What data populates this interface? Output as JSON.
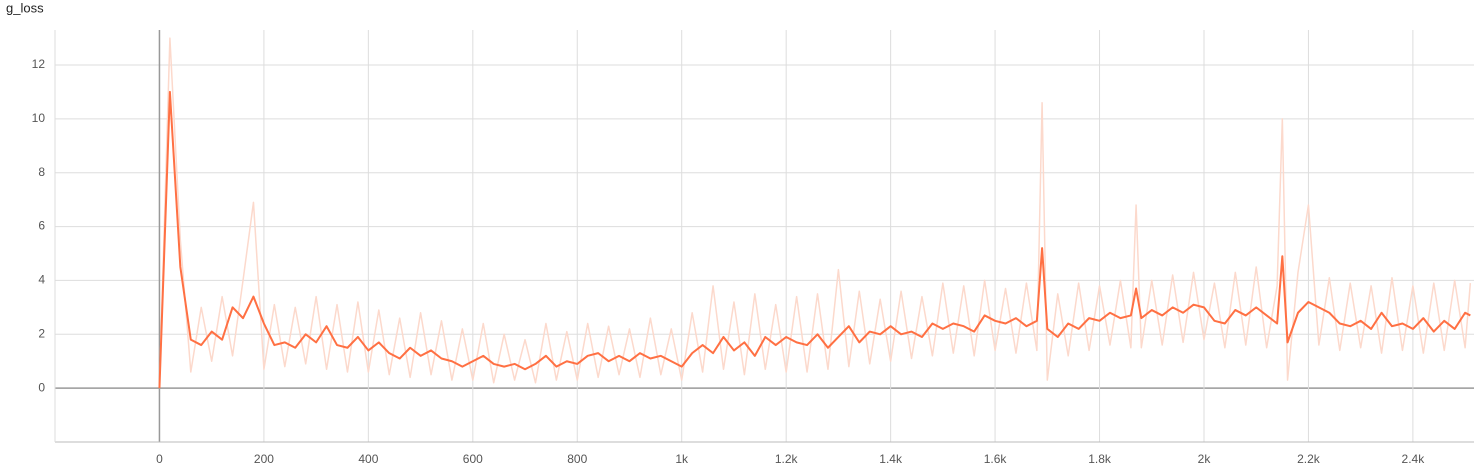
{
  "chart_data": {
    "type": "line",
    "title": "g_loss",
    "x": [
      0,
      20,
      40,
      60,
      80,
      100,
      120,
      140,
      160,
      180,
      200,
      220,
      240,
      260,
      280,
      300,
      320,
      340,
      360,
      380,
      400,
      420,
      440,
      460,
      480,
      500,
      520,
      540,
      560,
      580,
      600,
      620,
      640,
      660,
      680,
      700,
      720,
      740,
      760,
      780,
      800,
      820,
      840,
      860,
      880,
      900,
      920,
      940,
      960,
      980,
      1000,
      1020,
      1040,
      1060,
      1080,
      1100,
      1120,
      1140,
      1160,
      1180,
      1200,
      1220,
      1240,
      1260,
      1280,
      1300,
      1320,
      1340,
      1360,
      1380,
      1400,
      1420,
      1440,
      1460,
      1480,
      1500,
      1520,
      1540,
      1560,
      1580,
      1600,
      1620,
      1640,
      1660,
      1680,
      1690,
      1700,
      1720,
      1740,
      1760,
      1780,
      1800,
      1820,
      1840,
      1860,
      1870,
      1880,
      1900,
      1920,
      1940,
      1960,
      1980,
      2000,
      2020,
      2040,
      2060,
      2080,
      2100,
      2120,
      2140,
      2150,
      2160,
      2180,
      2200,
      2220,
      2240,
      2260,
      2280,
      2300,
      2320,
      2340,
      2360,
      2380,
      2400,
      2420,
      2440,
      2460,
      2480,
      2500,
      2510
    ],
    "series": [
      {
        "color": "#fcd9cc",
        "values": [
          0,
          13.0,
          5.5,
          0.6,
          3.0,
          1.0,
          3.4,
          1.2,
          4.0,
          6.9,
          0.7,
          3.1,
          0.8,
          3.0,
          0.9,
          3.4,
          0.7,
          3.1,
          0.6,
          3.2,
          0.6,
          2.9,
          0.5,
          2.6,
          0.4,
          2.8,
          0.5,
          2.5,
          0.3,
          2.2,
          0.3,
          2.4,
          0.2,
          2.0,
          0.3,
          1.8,
          0.2,
          2.4,
          0.3,
          2.1,
          0.3,
          2.4,
          0.4,
          2.3,
          0.5,
          2.2,
          0.4,
          2.6,
          0.5,
          2.2,
          0.3,
          2.8,
          0.6,
          3.8,
          0.7,
          3.2,
          0.5,
          3.5,
          0.7,
          3.1,
          0.6,
          3.4,
          0.6,
          3.5,
          0.7,
          4.4,
          0.8,
          3.6,
          0.9,
          3.3,
          1.0,
          3.6,
          1.1,
          3.4,
          1.2,
          3.9,
          1.3,
          3.8,
          1.2,
          4.0,
          1.4,
          3.7,
          1.3,
          3.9,
          1.4,
          10.6,
          0.3,
          3.5,
          1.2,
          3.9,
          1.4,
          3.8,
          1.6,
          4.0,
          1.5,
          6.8,
          1.5,
          4.0,
          1.6,
          4.2,
          1.7,
          4.3,
          1.8,
          3.9,
          1.5,
          4.3,
          1.6,
          4.5,
          1.5,
          3.8,
          10.0,
          0.3,
          4.3,
          6.8,
          1.6,
          4.1,
          1.4,
          3.9,
          1.5,
          3.8,
          1.3,
          4.1,
          1.4,
          3.8,
          1.3,
          3.9,
          1.4,
          4.0,
          1.5,
          3.9
        ]
      },
      {
        "color": "#ff7043",
        "values": [
          0,
          11.0,
          4.5,
          1.8,
          1.6,
          2.1,
          1.8,
          3.0,
          2.6,
          3.4,
          2.4,
          1.6,
          1.7,
          1.5,
          2.0,
          1.7,
          2.3,
          1.6,
          1.5,
          1.9,
          1.4,
          1.7,
          1.3,
          1.1,
          1.5,
          1.2,
          1.4,
          1.1,
          1.0,
          0.8,
          1.0,
          1.2,
          0.9,
          0.8,
          0.9,
          0.7,
          0.9,
          1.2,
          0.8,
          1.0,
          0.9,
          1.2,
          1.3,
          1.0,
          1.2,
          1.0,
          1.3,
          1.1,
          1.2,
          1.0,
          0.8,
          1.3,
          1.6,
          1.3,
          1.9,
          1.4,
          1.7,
          1.2,
          1.9,
          1.6,
          1.9,
          1.7,
          1.6,
          2.0,
          1.5,
          1.9,
          2.3,
          1.7,
          2.1,
          2.0,
          2.3,
          2.0,
          2.1,
          1.9,
          2.4,
          2.2,
          2.4,
          2.3,
          2.1,
          2.7,
          2.5,
          2.4,
          2.6,
          2.3,
          2.5,
          5.2,
          2.2,
          1.9,
          2.4,
          2.2,
          2.6,
          2.5,
          2.8,
          2.6,
          2.7,
          3.7,
          2.6,
          2.9,
          2.7,
          3.0,
          2.8,
          3.1,
          3.0,
          2.5,
          2.4,
          2.9,
          2.7,
          3.0,
          2.7,
          2.4,
          4.9,
          1.7,
          2.8,
          3.2,
          3.0,
          2.8,
          2.4,
          2.3,
          2.5,
          2.2,
          2.8,
          2.3,
          2.4,
          2.2,
          2.6,
          2.1,
          2.5,
          2.2,
          2.8,
          2.7
        ]
      }
    ],
    "xlim": [
      -200,
      2517
    ],
    "ylim": [
      -2,
      13.3
    ],
    "xticks": [
      0,
      200,
      400,
      600,
      800,
      {
        "value": 1000,
        "label": "1k"
      },
      {
        "value": 1200,
        "label": "1.2k"
      },
      {
        "value": 1400,
        "label": "1.4k"
      },
      {
        "value": 1600,
        "label": "1.6k"
      },
      {
        "value": 1800,
        "label": "1.8k"
      },
      {
        "value": 2000,
        "label": "2k"
      },
      {
        "value": 2200,
        "label": "2.2k"
      },
      {
        "value": 2400,
        "label": "2.4k"
      }
    ],
    "yticks": [
      0,
      2,
      4,
      6,
      8,
      10,
      12
    ],
    "grid": true
  }
}
